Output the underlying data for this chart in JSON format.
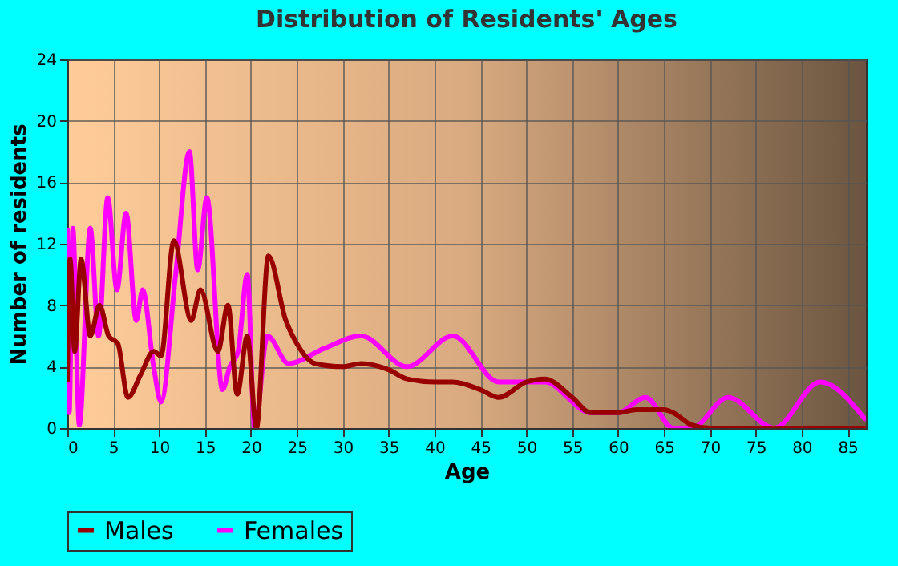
{
  "chart_data": {
    "type": "line",
    "title": "Distribution of Residents' Ages",
    "xlabel": "Age",
    "ylabel": "Number of residents",
    "xlim": [
      0,
      87
    ],
    "xticks": [
      0,
      5,
      10,
      15,
      20,
      25,
      30,
      35,
      40,
      45,
      50,
      55,
      60,
      65,
      70,
      75,
      80,
      85
    ],
    "ylim": [
      0,
      24
    ],
    "yticks": [
      0,
      4,
      8,
      12,
      16,
      20,
      24
    ],
    "grid": true,
    "legend": "bottom",
    "marker": "none",
    "line_style": "solid",
    "series": [
      {
        "name": "Males",
        "color": "#990000",
        "x": [
          0,
          0.3,
          0.8,
          1.5,
          2.5,
          3.5,
          4.5,
          5.5,
          6.6,
          8,
          9.4,
          10.2,
          11.6,
          13.5,
          14.5,
          16.4,
          17.5,
          18.5,
          19.6,
          20.6,
          21.9,
          23.8,
          25,
          27,
          30,
          32,
          35,
          37,
          40,
          42,
          45,
          47,
          50,
          52,
          55,
          57,
          60,
          62,
          65,
          66,
          68,
          70,
          75,
          80,
          87
        ],
        "values": [
          3,
          11,
          5,
          11,
          6,
          8,
          6,
          5.5,
          2,
          3.5,
          5,
          4.7,
          12.2,
          7,
          9,
          5,
          8,
          2.2,
          6,
          0,
          11.2,
          7,
          5.5,
          4.2,
          4,
          4.2,
          3.8,
          3.2,
          3,
          3,
          2.5,
          2,
          3,
          3.2,
          2,
          1,
          1,
          1.2,
          1.2,
          1,
          0.2,
          0,
          0,
          0,
          0
        ]
      },
      {
        "name": "Females",
        "color": "#ff00ff",
        "x": [
          0,
          0.2,
          0.6,
          1.3,
          2.5,
          3.4,
          4.4,
          5.4,
          6.4,
          7.5,
          8.2,
          9.4,
          10.2,
          11.8,
          13.3,
          14.2,
          15.2,
          16.9,
          17.7,
          18.6,
          19.6,
          20.4,
          21.8,
          24.1,
          28,
          32,
          37,
          42,
          47,
          52,
          57,
          60,
          63,
          66,
          68,
          72,
          77,
          82,
          87
        ],
        "values": [
          13,
          1,
          13,
          0.2,
          13,
          6,
          15,
          9,
          14,
          7,
          9,
          4,
          1.7,
          10,
          18,
          10.3,
          15,
          2.5,
          4,
          5,
          10,
          0,
          6,
          4.2,
          5.2,
          6,
          4,
          6,
          3,
          3,
          1,
          1,
          2,
          0,
          0,
          2,
          0,
          3,
          0.5
        ]
      }
    ]
  }
}
